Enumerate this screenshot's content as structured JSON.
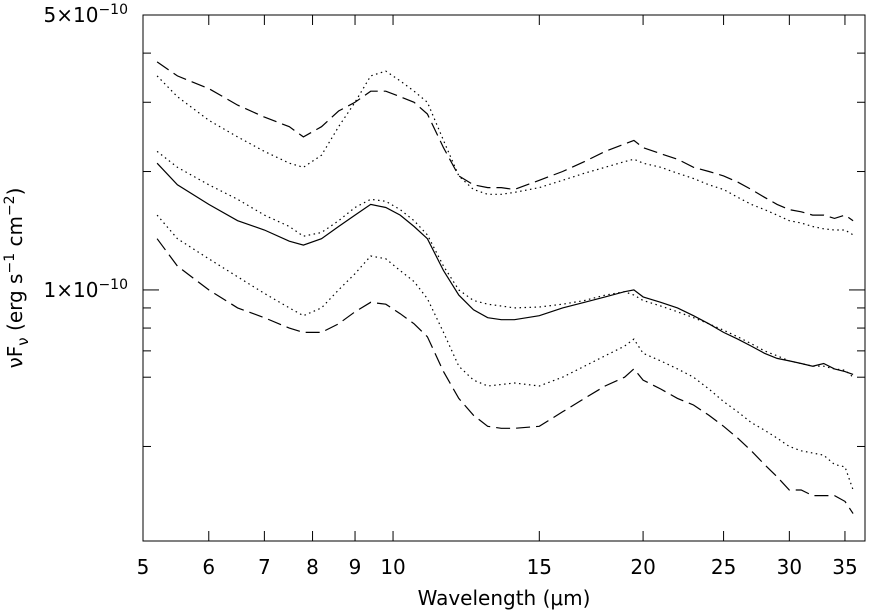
{
  "chart_data": {
    "type": "line",
    "xlabel": "Wavelength (μm)",
    "ylabel": "νF_ν (erg s^-1 cm^-2)",
    "xscale": "log",
    "yscale": "log",
    "xlim": [
      5.0,
      37.0
    ],
    "ylim": [
      2.3e-11,
      5e-10
    ],
    "x_ticks": [
      {
        "value": 5,
        "label": "5"
      },
      {
        "value": 6,
        "label": "6"
      },
      {
        "value": 7,
        "label": "7"
      },
      {
        "value": 8,
        "label": "8"
      },
      {
        "value": 9,
        "label": "9"
      },
      {
        "value": 10,
        "label": "10"
      },
      {
        "value": 15,
        "label": "15"
      },
      {
        "value": 20,
        "label": "20"
      },
      {
        "value": 25,
        "label": "25"
      },
      {
        "value": 30,
        "label": "30"
      },
      {
        "value": 35,
        "label": "35"
      }
    ],
    "y_ticks": [
      {
        "value": 1e-10,
        "label": "1×10",
        "exp": "−10"
      },
      {
        "value": 5e-10,
        "label": "5×10",
        "exp": "−10"
      }
    ],
    "y_minor_ticks": [
      4e-11,
      6e-11,
      7e-11,
      8e-11,
      9e-11,
      2e-10,
      3e-10,
      4e-10
    ],
    "grid": false,
    "legend": "none",
    "series": [
      {
        "style": "dashed",
        "x": [
          5.2,
          5.5,
          6.0,
          6.5,
          7.0,
          7.5,
          7.8,
          8.2,
          8.6,
          9.0,
          9.4,
          9.8,
          10.2,
          10.6,
          11.0,
          11.5,
          12.0,
          12.5,
          13.0,
          13.5,
          14.0,
          15.0,
          16.0,
          17.0,
          18.0,
          19.0,
          19.5,
          20.0,
          21.0,
          22.0,
          23.0,
          24.0,
          25.0,
          26.0,
          27.0,
          28.0,
          29.0,
          30.0,
          31.0,
          32.0,
          33.0,
          34.0,
          35.0,
          35.8
        ],
        "y": [
          3.8e-10,
          3.5e-10,
          3.25e-10,
          2.95e-10,
          2.75e-10,
          2.6e-10,
          2.45e-10,
          2.6e-10,
          2.85e-10,
          3e-10,
          3.2e-10,
          3.2e-10,
          3.1e-10,
          3e-10,
          2.8e-10,
          2.3e-10,
          1.95e-10,
          1.85e-10,
          1.82e-10,
          1.82e-10,
          1.8e-10,
          1.9e-10,
          2e-10,
          2.12e-10,
          2.25e-10,
          2.35e-10,
          2.4e-10,
          2.3e-10,
          2.22e-10,
          2.15e-10,
          2.05e-10,
          2e-10,
          1.95e-10,
          1.88e-10,
          1.8e-10,
          1.72e-10,
          1.65e-10,
          1.6e-10,
          1.58e-10,
          1.55e-10,
          1.55e-10,
          1.52e-10,
          1.55e-10,
          1.5e-10
        ]
      },
      {
        "style": "dotted",
        "x": [
          5.2,
          5.5,
          6.0,
          6.5,
          7.0,
          7.5,
          7.8,
          8.2,
          8.6,
          9.0,
          9.4,
          9.8,
          10.2,
          10.6,
          11.0,
          11.5,
          12.0,
          12.5,
          13.0,
          13.5,
          14.0,
          15.0,
          16.0,
          17.0,
          18.0,
          19.0,
          19.5,
          20.0,
          21.0,
          22.0,
          23.0,
          24.0,
          25.0,
          26.0,
          27.0,
          28.0,
          29.0,
          30.0,
          31.0,
          32.0,
          33.0,
          34.0,
          35.0,
          35.8
        ],
        "y": [
          3.5e-10,
          3.1e-10,
          2.7e-10,
          2.45e-10,
          2.25e-10,
          2.1e-10,
          2.05e-10,
          2.2e-10,
          2.6e-10,
          3e-10,
          3.5e-10,
          3.6e-10,
          3.4e-10,
          3.2e-10,
          3e-10,
          2.4e-10,
          1.95e-10,
          1.8e-10,
          1.75e-10,
          1.75e-10,
          1.77e-10,
          1.82e-10,
          1.9e-10,
          1.98e-10,
          2.05e-10,
          2.12e-10,
          2.15e-10,
          2.1e-10,
          2.05e-10,
          1.98e-10,
          1.92e-10,
          1.85e-10,
          1.8e-10,
          1.72e-10,
          1.65e-10,
          1.6e-10,
          1.55e-10,
          1.5e-10,
          1.48e-10,
          1.45e-10,
          1.43e-10,
          1.42e-10,
          1.42e-10,
          1.38e-10
        ]
      },
      {
        "style": "dotted",
        "x": [
          5.2,
          5.5,
          6.0,
          6.5,
          7.0,
          7.5,
          7.8,
          8.2,
          8.6,
          9.0,
          9.4,
          9.8,
          10.2,
          10.6,
          11.0,
          11.5,
          12.0,
          12.5,
          13.0,
          13.5,
          14.0,
          15.0,
          16.0,
          17.0,
          18.0,
          19.0,
          19.5,
          20.0,
          21.0,
          22.0,
          23.0,
          24.0,
          25.0,
          26.0,
          27.0,
          28.0,
          29.0,
          30.0,
          31.0,
          32.0,
          33.0,
          34.0,
          35.0,
          35.8
        ],
        "y": [
          2.25e-10,
          2.05e-10,
          1.85e-10,
          1.7e-10,
          1.55e-10,
          1.45e-10,
          1.37e-10,
          1.4e-10,
          1.5e-10,
          1.62e-10,
          1.7e-10,
          1.68e-10,
          1.6e-10,
          1.5e-10,
          1.38e-10,
          1.15e-10,
          1e-10,
          9.4e-11,
          9.2e-11,
          9.1e-11,
          9e-11,
          9.05e-11,
          9.2e-11,
          9.4e-11,
          9.7e-11,
          9.9e-11,
          9.7e-11,
          9.4e-11,
          9.1e-11,
          8.8e-11,
          8.5e-11,
          8.2e-11,
          7.9e-11,
          7.6e-11,
          7.3e-11,
          7e-11,
          6.8e-11,
          6.6e-11,
          6.5e-11,
          6.4e-11,
          6.4e-11,
          6.3e-11,
          6.25e-11,
          6e-11
        ]
      },
      {
        "style": "solid",
        "x": [
          5.2,
          5.5,
          6.0,
          6.5,
          7.0,
          7.5,
          7.8,
          8.2,
          8.6,
          9.0,
          9.4,
          9.8,
          10.2,
          10.6,
          11.0,
          11.5,
          12.0,
          12.5,
          13.0,
          13.5,
          14.0,
          15.0,
          16.0,
          17.0,
          18.0,
          19.0,
          19.5,
          20.0,
          21.0,
          22.0,
          23.0,
          24.0,
          25.0,
          26.0,
          27.0,
          28.0,
          29.0,
          30.0,
          31.0,
          32.0,
          33.0,
          34.0,
          35.0,
          35.8
        ],
        "y": [
          2.1e-10,
          1.85e-10,
          1.65e-10,
          1.5e-10,
          1.42e-10,
          1.33e-10,
          1.3e-10,
          1.35e-10,
          1.45e-10,
          1.55e-10,
          1.65e-10,
          1.62e-10,
          1.55e-10,
          1.45e-10,
          1.35e-10,
          1.12e-10,
          9.7e-11,
          8.9e-11,
          8.5e-11,
          8.4e-11,
          8.4e-11,
          8.6e-11,
          9e-11,
          9.3e-11,
          9.6e-11,
          9.9e-11,
          1e-10,
          9.6e-11,
          9.3e-11,
          9e-11,
          8.6e-11,
          8.2e-11,
          7.8e-11,
          7.5e-11,
          7.2e-11,
          6.9e-11,
          6.7e-11,
          6.6e-11,
          6.5e-11,
          6.4e-11,
          6.5e-11,
          6.3e-11,
          6.2e-11,
          6.1e-11
        ]
      },
      {
        "style": "dotted",
        "x": [
          5.2,
          5.5,
          6.0,
          6.5,
          7.0,
          7.5,
          7.8,
          8.2,
          8.6,
          9.0,
          9.4,
          9.8,
          10.2,
          10.6,
          11.0,
          11.5,
          12.0,
          12.5,
          13.0,
          13.5,
          14.0,
          15.0,
          16.0,
          17.0,
          18.0,
          19.0,
          19.5,
          20.0,
          21.0,
          22.0,
          23.0,
          24.0,
          25.0,
          26.0,
          27.0,
          28.0,
          29.0,
          30.0,
          31.0,
          32.0,
          33.0,
          34.0,
          35.0,
          35.8
        ],
        "y": [
          1.55e-10,
          1.35e-10,
          1.2e-10,
          1.08e-10,
          9.8e-11,
          9e-11,
          8.6e-11,
          9e-11,
          1e-10,
          1.1e-10,
          1.22e-10,
          1.2e-10,
          1.12e-10,
          1.05e-10,
          9.5e-11,
          7.8e-11,
          6.4e-11,
          5.9e-11,
          5.7e-11,
          5.75e-11,
          5.8e-11,
          5.7e-11,
          6e-11,
          6.4e-11,
          6.8e-11,
          7.2e-11,
          7.5e-11,
          6.9e-11,
          6.6e-11,
          6.3e-11,
          6e-11,
          5.6e-11,
          5.2e-11,
          4.9e-11,
          4.6e-11,
          4.4e-11,
          4.2e-11,
          4e-11,
          3.9e-11,
          3.85e-11,
          3.8e-11,
          3.6e-11,
          3.55e-11,
          3.1e-11
        ]
      },
      {
        "style": "dashed",
        "x": [
          5.2,
          5.5,
          6.0,
          6.5,
          7.0,
          7.5,
          7.8,
          8.2,
          8.6,
          9.0,
          9.4,
          9.8,
          10.2,
          10.6,
          11.0,
          11.5,
          12.0,
          12.5,
          13.0,
          13.5,
          14.0,
          15.0,
          16.0,
          17.0,
          18.0,
          19.0,
          19.5,
          20.0,
          21.0,
          22.0,
          23.0,
          24.0,
          25.0,
          26.0,
          27.0,
          28.0,
          29.0,
          30.0,
          31.0,
          32.0,
          33.0,
          34.0,
          35.0,
          35.8
        ],
        "y": [
          1.35e-10,
          1.15e-10,
          1e-10,
          9e-11,
          8.5e-11,
          8e-11,
          7.8e-11,
          7.8e-11,
          8.2e-11,
          8.8e-11,
          9.3e-11,
          9.2e-11,
          8.7e-11,
          8.2e-11,
          7.6e-11,
          6.2e-11,
          5.3e-11,
          4.8e-11,
          4.5e-11,
          4.45e-11,
          4.45e-11,
          4.5e-11,
          4.9e-11,
          5.3e-11,
          5.7e-11,
          6e-11,
          6.3e-11,
          5.9e-11,
          5.6e-11,
          5.3e-11,
          5.1e-11,
          4.8e-11,
          4.5e-11,
          4.2e-11,
          3.9e-11,
          3.6e-11,
          3.35e-11,
          3.1e-11,
          3.1e-11,
          3e-11,
          3e-11,
          3e-11,
          2.9e-11,
          2.7e-11
        ]
      }
    ]
  }
}
